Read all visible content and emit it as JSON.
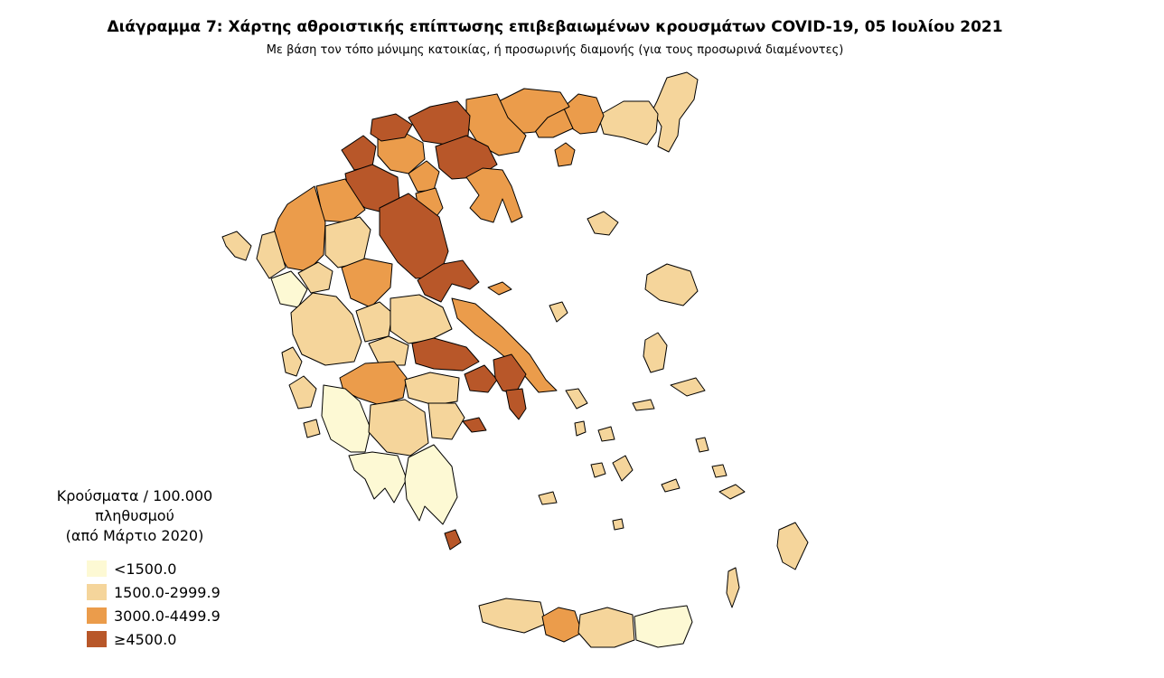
{
  "title": "Διάγραμμα 7: Χάρτης αθροιστικής επίπτωσης επιβεβαιωμένων κρουσμάτων COVID-19, 05 Ιουλίου 2021",
  "subtitle": "Με βάση τον τόπο μόνιμης κατοικίας, ή προσωρινής διαμονής (για τους προσωρινά διαμένοντες)",
  "legend": {
    "title_line1": "Κρούσματα / 100.000 πληθυσμού",
    "title_line2": "(από Μάρτιο 2020)",
    "items": [
      {
        "label": "<1500.0",
        "color": "#fdf9d4"
      },
      {
        "label": "1500.0-2999.9",
        "color": "#f5d59b"
      },
      {
        "label": "3000.0-4499.9",
        "color": "#eb9c4b"
      },
      {
        "label": "≥4500.0",
        "color": "#b85729"
      }
    ]
  }
}
